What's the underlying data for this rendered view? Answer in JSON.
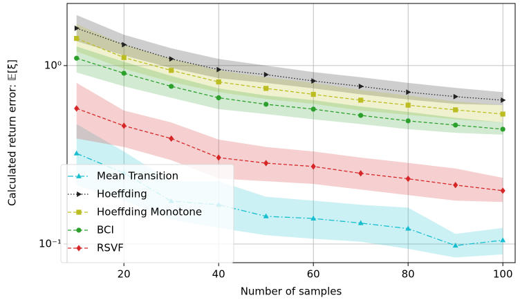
{
  "chart_data": {
    "type": "line",
    "xlabel": "Number of samples",
    "ylabel": "Calculated return error: 𝔼[ξ]",
    "x": [
      10,
      20,
      30,
      40,
      50,
      60,
      70,
      80,
      90,
      100
    ],
    "xlim": [
      8,
      102.6
    ],
    "xticks": [
      20,
      40,
      60,
      80,
      100
    ],
    "ylim": [
      0.0786,
      2.23
    ],
    "yscale": "log",
    "yticks": [
      {
        "value": 0.1,
        "label": "10⁻¹"
      },
      {
        "value": 1,
        "label": "10⁰"
      }
    ],
    "grid": true,
    "legend": "lower left",
    "series": [
      {
        "name": "Mean Transition",
        "color": "#17becf",
        "marker": "triangle-up",
        "dash": "8 3 2 3",
        "values": [
          0.322,
          0.25,
          0.174,
          0.166,
          0.143,
          0.139,
          0.131,
          0.122,
          0.098,
          0.105
        ],
        "upper": [
          0.47,
          0.33,
          0.225,
          0.225,
          0.184,
          0.175,
          0.166,
          0.16,
          0.114,
          0.123
        ],
        "lower": [
          0.213,
          0.175,
          0.137,
          0.123,
          0.112,
          0.107,
          0.103,
          0.094,
          0.084,
          0.0875
        ]
      },
      {
        "name": "Hoeffding",
        "color": "#222222",
        "marker": "triangle-right",
        "dash": "1.5 2.5",
        "values": [
          1.62,
          1.31,
          1.09,
          0.95,
          0.89,
          0.82,
          0.765,
          0.71,
          0.67,
          0.64
        ],
        "upper": [
          1.92,
          1.49,
          1.25,
          1.09,
          1.0,
          0.92,
          0.86,
          0.8,
          0.75,
          0.71
        ],
        "lower": [
          1.37,
          1.14,
          0.97,
          0.85,
          0.8,
          0.745,
          0.69,
          0.645,
          0.61,
          0.6
        ]
      },
      {
        "name": "Hoeffding Monotone",
        "color": "#bcbd22",
        "marker": "square",
        "dash": "5 3",
        "values": [
          1.42,
          1.11,
          0.94,
          0.81,
          0.745,
          0.69,
          0.64,
          0.6,
          0.565,
          0.535
        ],
        "upper": [
          1.71,
          1.31,
          1.09,
          0.94,
          0.86,
          0.8,
          0.73,
          0.68,
          0.63,
          0.6
        ],
        "lower": [
          1.2,
          0.96,
          0.81,
          0.71,
          0.65,
          0.61,
          0.56,
          0.53,
          0.5,
          0.48
        ]
      },
      {
        "name": "BCI",
        "color": "#2ca02c",
        "marker": "circle",
        "dash": "5 3",
        "values": [
          1.1,
          0.906,
          0.765,
          0.66,
          0.607,
          0.57,
          0.526,
          0.49,
          0.464,
          0.44
        ],
        "upper": [
          1.28,
          1.05,
          0.875,
          0.745,
          0.68,
          0.64,
          0.59,
          0.55,
          0.51,
          0.48
        ],
        "lower": [
          0.915,
          0.765,
          0.66,
          0.57,
          0.535,
          0.5,
          0.47,
          0.44,
          0.42,
          0.41
        ]
      },
      {
        "name": "RSVF",
        "color": "#d62728",
        "marker": "diamond",
        "dash": "5 3",
        "values": [
          0.575,
          0.46,
          0.39,
          0.305,
          0.284,
          0.272,
          0.249,
          0.232,
          0.214,
          0.199
        ],
        "upper": [
          0.8,
          0.56,
          0.48,
          0.385,
          0.35,
          0.33,
          0.305,
          0.285,
          0.265,
          0.235
        ],
        "lower": [
          0.39,
          0.35,
          0.295,
          0.233,
          0.225,
          0.217,
          0.202,
          0.188,
          0.175,
          0.172
        ]
      }
    ]
  }
}
